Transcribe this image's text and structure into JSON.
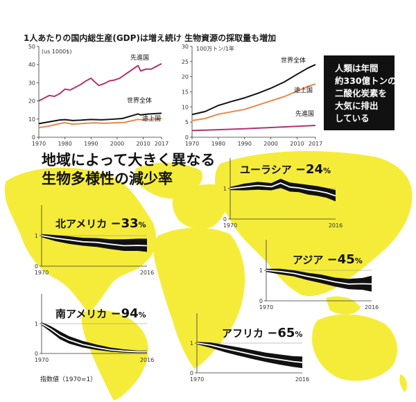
{
  "title": "1人あたりの国内総生産(GDP)は増え続け 生物資源の採取量も増加",
  "headline": [
    "地域によって大きく異なる",
    "生物多様性の減少率"
  ],
  "note": [
    "人類は年間",
    "約330億トンの",
    "二酸化炭素を",
    "大気に排出",
    "している"
  ],
  "footnote": "指数値（1970=1）",
  "colors": {
    "map": "#f5ec3a",
    "developed": "#b0336e",
    "developing": "#e8874a",
    "world": "#111111",
    "band": "#111111",
    "box": "#111111"
  },
  "chart_data": [
    {
      "type": "line",
      "id": "gdp",
      "title": "",
      "ylabel": "(us 1000$)",
      "xlim": [
        1970,
        2017
      ],
      "ylim": [
        0,
        50
      ],
      "xticks": [
        1970,
        1980,
        1990,
        2000,
        2010,
        2017
      ],
      "yticks": [
        0,
        10,
        20,
        30,
        40,
        50
      ],
      "series": [
        {
          "name": "先進国",
          "color": "#b0336e",
          "x": [
            1970,
            1972,
            1974,
            1976,
            1978,
            1980,
            1982,
            1984,
            1986,
            1988,
            1990,
            1991,
            1993,
            1995,
            1997,
            1999,
            2001,
            2003,
            2005,
            2007,
            2008,
            2009,
            2011,
            2013,
            2015,
            2017
          ],
          "y": [
            20,
            21.5,
            23,
            22.5,
            24,
            26.5,
            26,
            27.5,
            29,
            31,
            32.5,
            31,
            28.5,
            29.5,
            31,
            31.5,
            32.5,
            34.5,
            36.5,
            38.5,
            39.5,
            36.5,
            37.5,
            37.5,
            39,
            40.5
          ]
        },
        {
          "name": "世界全体",
          "color": "#111111",
          "x": [
            1970,
            1974,
            1978,
            1980,
            1983,
            1986,
            1990,
            1994,
            1998,
            2002,
            2006,
            2008,
            2009,
            2012,
            2017
          ],
          "y": [
            7.5,
            8.5,
            9.5,
            9.7,
            9.2,
            9.4,
            9.8,
            9.6,
            9.9,
            10.3,
            12,
            12.8,
            12.3,
            12.8,
            13.2
          ]
        },
        {
          "name": "途上国",
          "color": "#e8874a",
          "x": [
            1970,
            1974,
            1978,
            1980,
            1983,
            1987,
            1991,
            1995,
            1999,
            2003,
            2006,
            2008,
            2010,
            2014,
            2017
          ],
          "y": [
            5.3,
            6.2,
            7.5,
            8,
            7.2,
            7.6,
            7.9,
            7.7,
            7.9,
            8.2,
            9.2,
            9.8,
            9.6,
            10,
            10.3
          ]
        }
      ]
    },
    {
      "type": "line",
      "id": "biomass",
      "title": "",
      "ylabel": "100万トン/1年",
      "xlim": [
        1970,
        2017
      ],
      "ylim": [
        0,
        30
      ],
      "xticks": [
        1970,
        1980,
        1990,
        2000,
        2010,
        2017
      ],
      "yticks": [
        0,
        5,
        10,
        15,
        20,
        25,
        30
      ],
      "series": [
        {
          "name": "世界全体",
          "color": "#111111",
          "x": [
            1970,
            1975,
            1980,
            1985,
            1990,
            1995,
            2000,
            2005,
            2010,
            2014,
            2017
          ],
          "y": [
            7.5,
            8.5,
            10.5,
            11.8,
            13,
            14.5,
            16.2,
            18.2,
            20.8,
            22.8,
            24
          ]
        },
        {
          "name": "途上国",
          "color": "#e8874a",
          "x": [
            1970,
            1975,
            1980,
            1985,
            1990,
            1995,
            2000,
            2005,
            2010,
            2014,
            2017
          ],
          "y": [
            5.5,
            6.2,
            7.6,
            8.4,
            9.2,
            10.6,
            12,
            13.4,
            15.2,
            16.8,
            17.6
          ]
        },
        {
          "name": "先進国",
          "color": "#b0336e",
          "x": [
            1970,
            1980,
            1990,
            2000,
            2010,
            2017
          ],
          "y": [
            2.2,
            2.5,
            2.8,
            3.2,
            3.6,
            3.9
          ]
        }
      ]
    },
    {
      "type": "area",
      "id": "north-america",
      "region": "北アメリカ",
      "value": "−33",
      "unit": "%",
      "xlim": [
        1970,
        2016
      ],
      "ylim": [
        0,
        2
      ],
      "xticks": [
        1970,
        2016
      ],
      "yticks": [
        0,
        1
      ],
      "x": [
        1970,
        1976,
        1982,
        1988,
        1994,
        2000,
        2006,
        2012,
        2016
      ],
      "mid": [
        1,
        0.92,
        0.86,
        0.8,
        0.78,
        0.72,
        0.67,
        0.68,
        0.67
      ],
      "upper": [
        1.05,
        1.02,
        0.98,
        0.93,
        0.92,
        0.88,
        0.88,
        0.9,
        0.9
      ],
      "lower": [
        0.95,
        0.82,
        0.73,
        0.67,
        0.63,
        0.56,
        0.5,
        0.5,
        0.47
      ]
    },
    {
      "type": "area",
      "id": "eurasia",
      "region": "ユーラシア",
      "value": "−24",
      "unit": "%",
      "xlim": [
        1970,
        2016
      ],
      "ylim": [
        0,
        2
      ],
      "xticks": [
        1970,
        2016
      ],
      "yticks": [
        0,
        1
      ],
      "x": [
        1970,
        1976,
        1982,
        1988,
        1992,
        1996,
        2000,
        2004,
        2008,
        2012,
        2016
      ],
      "mid": [
        1,
        1.05,
        1.1,
        1.06,
        1.18,
        1.05,
        1.02,
        0.96,
        0.92,
        0.86,
        0.76
      ],
      "upper": [
        1.05,
        1.16,
        1.22,
        1.18,
        1.32,
        1.2,
        1.16,
        1.12,
        1.08,
        1.02,
        0.95
      ],
      "lower": [
        0.95,
        0.94,
        0.96,
        0.94,
        1.02,
        0.9,
        0.88,
        0.8,
        0.76,
        0.7,
        0.58
      ]
    },
    {
      "type": "area",
      "id": "asia",
      "region": "アジア",
      "value": "−45",
      "unit": "%",
      "xlim": [
        1970,
        2016
      ],
      "ylim": [
        0,
        2
      ],
      "xticks": [
        1970,
        2016
      ],
      "yticks": [
        0,
        1
      ],
      "x": [
        1970,
        1976,
        1982,
        1988,
        1994,
        2000,
        2006,
        2012,
        2016
      ],
      "mid": [
        1,
        0.96,
        0.9,
        0.8,
        0.72,
        0.62,
        0.55,
        0.56,
        0.55
      ],
      "upper": [
        1.05,
        1.05,
        1.0,
        0.92,
        0.86,
        0.76,
        0.72,
        0.75,
        0.82
      ],
      "lower": [
        0.95,
        0.87,
        0.8,
        0.68,
        0.58,
        0.47,
        0.38,
        0.36,
        0.3
      ]
    },
    {
      "type": "area",
      "id": "south-america",
      "region": "南アメリカ",
      "value": "−94",
      "unit": "%",
      "xlim": [
        1970,
        2016
      ],
      "ylim": [
        0,
        2
      ],
      "xticks": [
        1970,
        2016
      ],
      "yticks": [
        0,
        1
      ],
      "x": [
        1970,
        1974,
        1978,
        1982,
        1988,
        1994,
        2000,
        2006,
        2012,
        2016
      ],
      "mid": [
        1,
        0.82,
        0.6,
        0.45,
        0.3,
        0.2,
        0.12,
        0.08,
        0.06,
        0.06
      ],
      "upper": [
        1.05,
        0.92,
        0.74,
        0.58,
        0.42,
        0.3,
        0.2,
        0.14,
        0.1,
        0.1
      ],
      "lower": [
        0.95,
        0.72,
        0.48,
        0.33,
        0.2,
        0.12,
        0.06,
        0.03,
        0.02,
        0.02
      ]
    },
    {
      "type": "area",
      "id": "africa",
      "region": "アフリカ",
      "value": "−65",
      "unit": "%",
      "xlim": [
        1970,
        2016
      ],
      "ylim": [
        0,
        2
      ],
      "xticks": [
        1970,
        2016
      ],
      "yticks": [
        0,
        1
      ],
      "x": [
        1970,
        1976,
        1982,
        1988,
        1994,
        2000,
        2006,
        2012,
        2016
      ],
      "mid": [
        1,
        0.93,
        0.82,
        0.72,
        0.62,
        0.52,
        0.45,
        0.38,
        0.35
      ],
      "upper": [
        1.04,
        1.02,
        0.94,
        0.86,
        0.77,
        0.68,
        0.62,
        0.56,
        0.55
      ],
      "lower": [
        0.96,
        0.84,
        0.7,
        0.58,
        0.47,
        0.37,
        0.28,
        0.2,
        0.16
      ]
    }
  ]
}
